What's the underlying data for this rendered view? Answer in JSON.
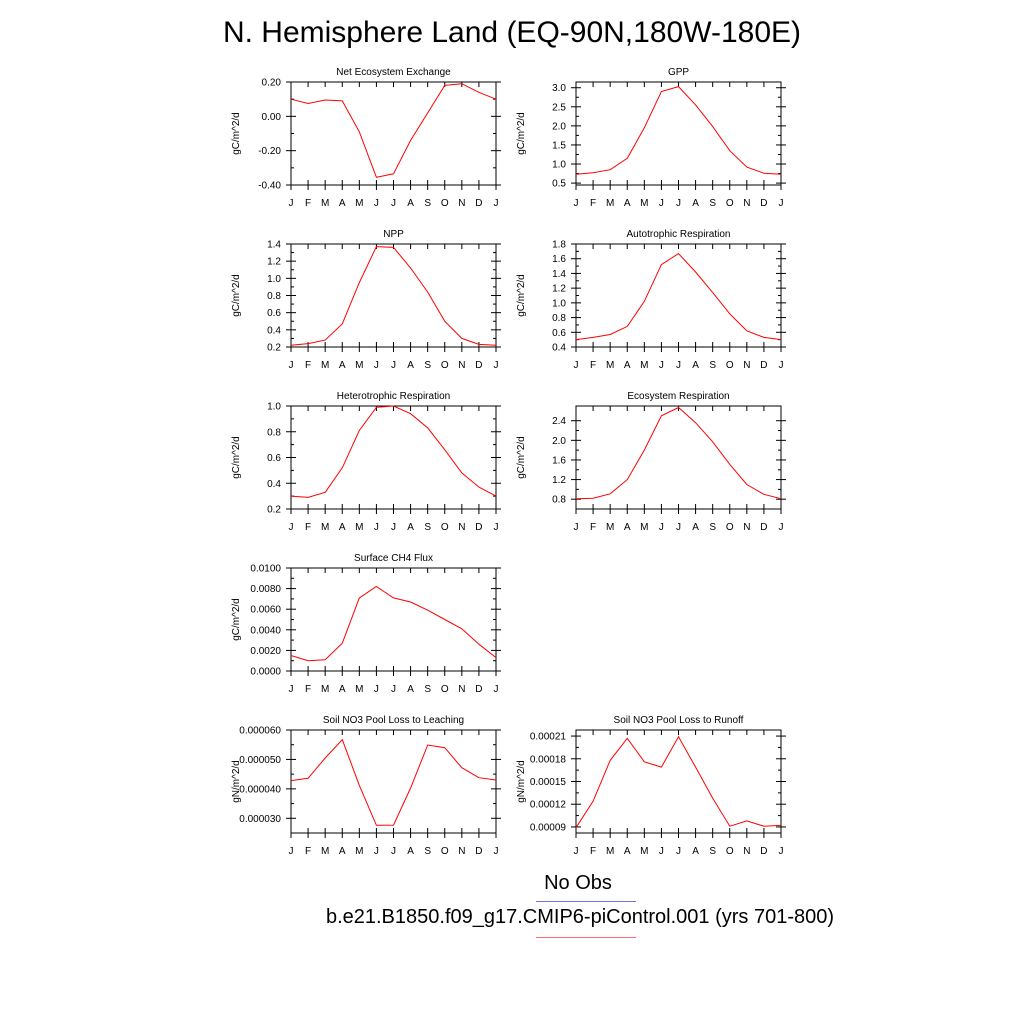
{
  "page": {
    "title": "N. Hemisphere Land (EQ-90N,180W-180E)"
  },
  "legend": {
    "obs_label": "No Obs",
    "obs_color": "#6f76e8",
    "case_label": "b.e21.B1850.f09_g17.CMIP6-piControl.001 (yrs 701-800)",
    "case_color": "#ff0000"
  },
  "chart_data": [
    {
      "type": "line",
      "title": "Net Ecosystem Exchange",
      "ylabel": "gC/m^2/d",
      "categories": [
        "J",
        "F",
        "M",
        "A",
        "M",
        "J",
        "J",
        "A",
        "S",
        "O",
        "N",
        "D",
        "J"
      ],
      "series": [
        {
          "values": [
            0.1,
            0.075,
            0.095,
            0.09,
            -0.09,
            -0.355,
            -0.335,
            -0.14,
            0.02,
            0.18,
            0.19,
            0.14,
            0.1
          ]
        }
      ],
      "ylim": [
        -0.4,
        0.2
      ],
      "yticks": [
        -0.4,
        -0.2,
        0.0,
        0.2
      ],
      "yticklabels": [
        "-0.40",
        "-0.20",
        "0.00",
        "0.20"
      ],
      "line_color": "#ff0000"
    },
    {
      "type": "line",
      "title": "GPP",
      "ylabel": "gC/m^2/d",
      "categories": [
        "J",
        "F",
        "M",
        "A",
        "M",
        "J",
        "J",
        "A",
        "S",
        "O",
        "N",
        "D",
        "J"
      ],
      "series": [
        {
          "values": [
            0.73,
            0.77,
            0.85,
            1.15,
            1.95,
            2.9,
            3.03,
            2.55,
            1.98,
            1.35,
            0.92,
            0.76,
            0.73
          ]
        }
      ],
      "ylim": [
        0.45,
        3.15
      ],
      "yticks": [
        0.5,
        1.0,
        1.5,
        2.0,
        2.5,
        3.0
      ],
      "yticklabels": [
        "0.5",
        "1.0",
        "1.5",
        "2.0",
        "2.5",
        "3.0"
      ],
      "line_color": "#ff0000"
    },
    {
      "type": "line",
      "title": "NPP",
      "ylabel": "gC/m^2/d",
      "categories": [
        "J",
        "F",
        "M",
        "A",
        "M",
        "J",
        "J",
        "A",
        "S",
        "O",
        "N",
        "D",
        "J"
      ],
      "series": [
        {
          "values": [
            0.22,
            0.24,
            0.28,
            0.47,
            0.95,
            1.37,
            1.36,
            1.12,
            0.84,
            0.5,
            0.3,
            0.23,
            0.22
          ]
        }
      ],
      "ylim": [
        0.2,
        1.4
      ],
      "yticks": [
        0.2,
        0.4,
        0.6,
        0.8,
        1.0,
        1.2,
        1.4
      ],
      "yticklabels": [
        "0.2",
        "0.4",
        "0.6",
        "0.8",
        "1.0",
        "1.2",
        "1.4"
      ],
      "line_color": "#ff0000"
    },
    {
      "type": "line",
      "title": "Autotrophic Respiration",
      "ylabel": "gC/m^2/d",
      "categories": [
        "J",
        "F",
        "M",
        "A",
        "M",
        "J",
        "J",
        "A",
        "S",
        "O",
        "N",
        "D",
        "J"
      ],
      "series": [
        {
          "values": [
            0.5,
            0.53,
            0.57,
            0.68,
            1.02,
            1.52,
            1.67,
            1.42,
            1.14,
            0.85,
            0.62,
            0.53,
            0.5
          ]
        }
      ],
      "ylim": [
        0.4,
        1.8
      ],
      "yticks": [
        0.4,
        0.6,
        0.8,
        1.0,
        1.2,
        1.4,
        1.6,
        1.8
      ],
      "yticklabels": [
        "0.4",
        "0.6",
        "0.8",
        "1.0",
        "1.2",
        "1.4",
        "1.6",
        "1.8"
      ],
      "line_color": "#ff0000"
    },
    {
      "type": "line",
      "title": "Heterotrophic Respiration",
      "ylabel": "gC/m^2/d",
      "categories": [
        "J",
        "F",
        "M",
        "A",
        "M",
        "J",
        "J",
        "A",
        "S",
        "O",
        "N",
        "D",
        "J"
      ],
      "series": [
        {
          "values": [
            0.3,
            0.29,
            0.33,
            0.52,
            0.81,
            0.99,
            1.0,
            0.94,
            0.83,
            0.66,
            0.48,
            0.37,
            0.3
          ]
        }
      ],
      "ylim": [
        0.2,
        1.0
      ],
      "yticks": [
        0.2,
        0.4,
        0.6,
        0.8,
        1.0
      ],
      "yticklabels": [
        "0.2",
        "0.4",
        "0.6",
        "0.8",
        "1.0"
      ],
      "line_color": "#ff0000"
    },
    {
      "type": "line",
      "title": "Ecosystem Respiration",
      "ylabel": "gC/m^2/d",
      "categories": [
        "J",
        "F",
        "M",
        "A",
        "M",
        "J",
        "J",
        "A",
        "S",
        "O",
        "N",
        "D",
        "J"
      ],
      "series": [
        {
          "values": [
            0.81,
            0.82,
            0.91,
            1.2,
            1.8,
            2.5,
            2.67,
            2.36,
            1.97,
            1.51,
            1.1,
            0.9,
            0.81
          ]
        }
      ],
      "ylim": [
        0.6,
        2.7
      ],
      "yticks": [
        0.8,
        1.2,
        1.6,
        2.0,
        2.4
      ],
      "yticklabels": [
        "0.8",
        "1.2",
        "1.6",
        "2.0",
        "2.4"
      ],
      "line_color": "#ff0000"
    },
    {
      "type": "line",
      "title": "Surface CH4 Flux",
      "ylabel": "gC/m^2/d",
      "categories": [
        "J",
        "F",
        "M",
        "A",
        "M",
        "J",
        "J",
        "A",
        "S",
        "O",
        "N",
        "D",
        "J"
      ],
      "series": [
        {
          "values": [
            0.0015,
            0.001,
            0.0011,
            0.0027,
            0.0071,
            0.0082,
            0.0071,
            0.0067,
            0.0059,
            0.005,
            0.0041,
            0.0026,
            0.0013
          ]
        }
      ],
      "ylim": [
        0.0,
        0.01
      ],
      "yticks": [
        0.0,
        0.002,
        0.004,
        0.006,
        0.008,
        0.01
      ],
      "yticklabels": [
        "0.0000",
        "0.0020",
        "0.0040",
        "0.0060",
        "0.0080",
        "0.0100"
      ],
      "line_color": "#ff0000"
    },
    {
      "type": "line",
      "title": "Soil NO3 Pool Loss to Leaching",
      "ylabel": "gN/m^2/d",
      "categories": [
        "J",
        "F",
        "M",
        "A",
        "M",
        "J",
        "J",
        "A",
        "S",
        "O",
        "N",
        "D",
        "J"
      ],
      "series": [
        {
          "values": [
            4.28e-05,
            4.36e-05,
            5.05e-05,
            5.67e-05,
            4.12e-05,
            2.76e-05,
            2.77e-05,
            4.03e-05,
            5.49e-05,
            5.4e-05,
            4.72e-05,
            4.38e-05,
            4.3e-05
          ]
        }
      ],
      "ylim": [
        2.5e-05,
        6e-05
      ],
      "yticks": [
        3e-05,
        4e-05,
        5e-05,
        6e-05
      ],
      "yticklabels": [
        "0.000030",
        "0.000040",
        "0.000050",
        "0.000060"
      ],
      "line_color": "#ff0000"
    },
    {
      "type": "line",
      "title": "Soil NO3 Pool Loss to Runoff",
      "ylabel": "gN/m^2/d",
      "categories": [
        "J",
        "F",
        "M",
        "A",
        "M",
        "J",
        "J",
        "A",
        "S",
        "O",
        "N",
        "D",
        "J"
      ],
      "series": [
        {
          "values": [
            8.9e-05,
            0.000124,
            0.000178,
            0.000207,
            0.000176,
            0.000169,
            0.000209,
            0.000169,
            0.000128,
            9.1e-05,
            9.8e-05,
            9.1e-05,
            9.2e-05
          ]
        }
      ],
      "ylim": [
        8.2e-05,
        0.000218
      ],
      "yticks": [
        9e-05,
        0.00012,
        0.00015,
        0.00018,
        0.00021
      ],
      "yticklabels": [
        "0.00009",
        "0.00012",
        "0.00015",
        "0.00018",
        "0.00021"
      ],
      "line_color": "#ff0000"
    }
  ]
}
